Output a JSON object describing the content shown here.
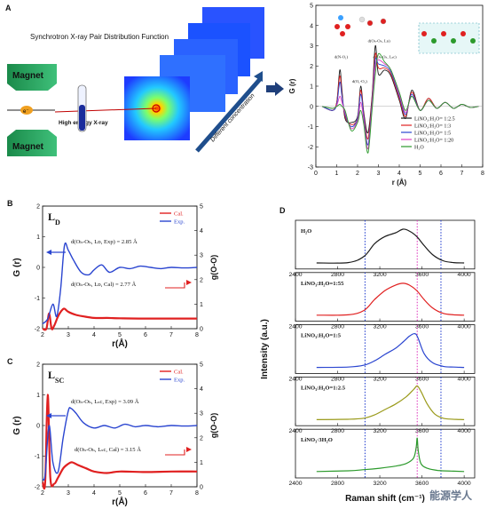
{
  "figure": {
    "watermark": "能源学人",
    "panel_A": {
      "label": "A",
      "schematic_title": "Synchrotron X-ray Pair Distribution Function",
      "magnet_label": "Magnet",
      "electron_label": "e⁻",
      "xray_label": "High energy X-ray",
      "arrow_label": "Different concentration"
    },
    "panel_B": {
      "label": "B",
      "Lsub": "D"
    },
    "panel_C": {
      "label": "C",
      "Lsub": "SC"
    },
    "panel_D": {
      "label": "D"
    }
  },
  "colors": {
    "black": "#1a1a1a",
    "red": "#e02020",
    "blue": "#2a45d0",
    "magenta": "#e040c0",
    "green": "#2c9a2c",
    "olive": "#9a9a1a",
    "darkred": "#c01010"
  },
  "chart_data": [
    {
      "id": "A",
      "type": "line",
      "xlabel": "r (Å)",
      "ylabel": "G (r)",
      "xlim": [
        0,
        8
      ],
      "ylim": [
        -3,
        5
      ],
      "xticks": [
        0,
        1,
        2,
        3,
        4,
        5,
        6,
        7,
        8
      ],
      "yticks": [
        -3,
        -2,
        -1,
        0,
        1,
        2,
        3,
        4,
        5
      ],
      "legend_position": "bottom-right",
      "annotations": [
        "d(N-O₁)",
        "d(O₁-O₁)",
        "d(Oₕ-Oₕ, Lᴅ)",
        "d(Oₕ-Oₕ, Lₛc)"
      ],
      "series": [
        {
          "name": "LiNO₃:H₂O= 1:2.5",
          "color": "#1a1a1a",
          "x": [
            0.3,
            0.8,
            1.0,
            1.15,
            1.25,
            1.4,
            1.7,
            2.0,
            2.15,
            2.3,
            2.5,
            2.7,
            2.85,
            3.0,
            3.3,
            3.6,
            4.0,
            4.3,
            4.6,
            5.0,
            5.4,
            5.8,
            6.2,
            6.6,
            7.0,
            7.4,
            7.8
          ],
          "y": [
            0,
            -0.2,
            0.2,
            1.8,
            0.8,
            -0.6,
            -0.8,
            -0.5,
            1.0,
            -0.3,
            -1.3,
            0.6,
            3.0,
            1.6,
            1.8,
            1.5,
            0.3,
            -0.6,
            0.8,
            -0.2,
            0.4,
            -0.1,
            0.2,
            -0.1,
            0.1,
            -0.05,
            0
          ]
        },
        {
          "name": "LiNO₃:H₂O= 1:3",
          "color": "#e02020",
          "x": [
            0.3,
            0.8,
            1.0,
            1.15,
            1.25,
            1.4,
            1.7,
            2.0,
            2.15,
            2.3,
            2.5,
            2.7,
            2.85,
            3.0,
            3.3,
            3.6,
            4.0,
            4.3,
            4.6,
            5.0,
            5.4,
            5.8,
            6.2,
            6.6,
            7.0,
            7.4,
            7.8
          ],
          "y": [
            0,
            -0.2,
            0.2,
            1.5,
            0.6,
            -0.5,
            -0.9,
            -0.6,
            0.8,
            -0.4,
            -1.6,
            0.5,
            2.6,
            1.9,
            1.9,
            1.6,
            0.4,
            -0.5,
            0.7,
            -0.2,
            0.4,
            -0.1,
            0.2,
            -0.1,
            0.1,
            -0.05,
            0
          ]
        },
        {
          "name": "LiNO₃:H₂O= 1:5",
          "color": "#2a45d0",
          "x": [
            0.3,
            0.8,
            1.0,
            1.15,
            1.25,
            1.4,
            1.7,
            2.0,
            2.15,
            2.3,
            2.5,
            2.7,
            2.85,
            3.0,
            3.3,
            3.6,
            4.0,
            4.3,
            4.6,
            5.0,
            5.4,
            5.8,
            6.2,
            6.6,
            7.0,
            7.4,
            7.8
          ],
          "y": [
            0,
            -0.2,
            0.1,
            1.2,
            0.5,
            -0.4,
            -1.0,
            -0.6,
            0.6,
            -0.5,
            -1.9,
            0.3,
            2.3,
            2.1,
            2.0,
            1.7,
            0.5,
            -0.4,
            0.6,
            -0.2,
            0.3,
            -0.1,
            0.2,
            -0.1,
            0.1,
            -0.05,
            0
          ]
        },
        {
          "name": "LiNO₃:H₂O= 1:20",
          "color": "#e040c0",
          "x": [
            0.3,
            0.8,
            1.0,
            1.15,
            1.25,
            1.4,
            1.7,
            2.0,
            2.15,
            2.3,
            2.5,
            2.7,
            2.85,
            3.0,
            3.3,
            3.6,
            4.0,
            4.3,
            4.6,
            5.0,
            5.4,
            5.8,
            6.2,
            6.6,
            7.0,
            7.4,
            7.8
          ],
          "y": [
            0,
            -0.1,
            0.05,
            0.5,
            0.2,
            -0.3,
            -1.1,
            -0.7,
            0.2,
            -0.7,
            -2.1,
            0.1,
            2.0,
            2.3,
            2.1,
            1.8,
            0.6,
            -0.3,
            0.5,
            -0.2,
            0.3,
            -0.1,
            0.2,
            -0.1,
            0.1,
            -0.05,
            0
          ]
        },
        {
          "name": "H₂O",
          "color": "#2c9a2c",
          "x": [
            0.3,
            0.8,
            1.0,
            1.15,
            1.25,
            1.4,
            1.7,
            2.0,
            2.15,
            2.3,
            2.5,
            2.7,
            2.85,
            3.0,
            3.3,
            3.6,
            4.0,
            4.3,
            4.6,
            5.0,
            5.4,
            5.8,
            6.2,
            6.6,
            7.0,
            7.4,
            7.8
          ],
          "y": [
            0,
            -0.1,
            0,
            0.1,
            0,
            -0.2,
            -1.2,
            -0.8,
            -0.2,
            -0.9,
            -2.3,
            -0.1,
            1.6,
            2.6,
            2.2,
            1.8,
            0.7,
            -0.2,
            0.5,
            -0.2,
            0.3,
            -0.1,
            0.2,
            -0.1,
            0.1,
            -0.05,
            0
          ]
        }
      ]
    },
    {
      "id": "B",
      "type": "line",
      "xlabel": "r(Å)",
      "ylabel": "G (r)",
      "y2label": "g(O-O)",
      "xlim": [
        2,
        8
      ],
      "ylim": [
        -2,
        2
      ],
      "y2lim": [
        0,
        5
      ],
      "xticks": [
        2,
        3,
        4,
        5,
        6,
        7,
        8
      ],
      "yticks": [
        -2,
        -1,
        0,
        1,
        2
      ],
      "y2ticks": [
        0,
        1,
        2,
        3,
        4,
        5
      ],
      "legend_position": "top-right",
      "annotations": [
        "d(Oₕ-Oₕ, Lᴅ, Exp) = 2.85 Å",
        "d(Oₕ-Oₕ, Lᴅ, Cal) = 2.77 Å"
      ],
      "series": [
        {
          "name": "Cal.",
          "color": "#e02020",
          "axis": "left",
          "x": [
            2.0,
            2.15,
            2.25,
            2.35,
            2.45,
            2.6,
            2.75,
            2.85,
            3.0,
            3.3,
            3.6,
            4.0,
            4.5,
            5.0,
            6.0,
            7.0,
            8.0
          ],
          "y": [
            -2.0,
            -2.0,
            -1.5,
            -2.0,
            -1.9,
            -1.6,
            -1.4,
            -1.35,
            -1.45,
            -1.55,
            -1.6,
            -1.65,
            -1.65,
            -1.66,
            -1.67,
            -1.67,
            -1.67
          ]
        },
        {
          "name": "Exp.",
          "color": "#2a45d0",
          "axis": "right",
          "x": [
            2.0,
            2.2,
            2.4,
            2.55,
            2.7,
            2.85,
            3.0,
            3.2,
            3.5,
            3.8,
            4.0,
            4.3,
            4.6,
            5.0,
            5.4,
            5.8,
            6.2,
            6.6,
            7.0,
            7.5,
            8.0
          ],
          "y": [
            0.2,
            0.4,
            1.0,
            0.5,
            1.6,
            3.4,
            3.2,
            2.8,
            2.3,
            2.2,
            2.4,
            2.6,
            2.3,
            2.5,
            2.45,
            2.55,
            2.5,
            2.45,
            2.5,
            2.48,
            2.5
          ]
        }
      ]
    },
    {
      "id": "C",
      "type": "line",
      "xlabel": "r(Å)",
      "ylabel": "G (r)",
      "y2label": "g(O-O)",
      "xlim": [
        2,
        8
      ],
      "ylim": [
        -2,
        2
      ],
      "y2lim": [
        0,
        5
      ],
      "xticks": [
        2,
        3,
        4,
        5,
        6,
        7,
        8
      ],
      "yticks": [
        -2,
        -1,
        0,
        1,
        2
      ],
      "y2ticks": [
        0,
        1,
        2,
        3,
        4,
        5
      ],
      "legend_position": "top-right",
      "annotations": [
        "d(Oₕ-Oₕ, Lₛc, Exp) = 3.09 Å",
        "d(Oₕ-Oₕ, Lₛc, Cal) = 3.15 Å"
      ],
      "series": [
        {
          "name": "Cal.",
          "color": "#e02020",
          "axis": "left",
          "x": [
            2.0,
            2.1,
            2.2,
            2.3,
            2.45,
            2.6,
            2.8,
            3.0,
            3.15,
            3.4,
            3.7,
            4.0,
            4.5,
            5.0,
            6.0,
            7.0,
            8.0
          ],
          "y": [
            -1.85,
            -1.85,
            1.0,
            -1.7,
            -1.9,
            -1.7,
            -1.4,
            -1.25,
            -1.2,
            -1.3,
            -1.4,
            -1.5,
            -1.55,
            -1.5,
            -1.52,
            -1.5,
            -1.5
          ]
        },
        {
          "name": "Exp.",
          "color": "#2a45d0",
          "axis": "right",
          "x": [
            2.0,
            2.1,
            2.25,
            2.4,
            2.6,
            2.8,
            3.0,
            3.1,
            3.3,
            3.6,
            4.0,
            4.4,
            4.8,
            5.2,
            5.6,
            6.0,
            6.5,
            7.0,
            7.5,
            8.0
          ],
          "y": [
            0.3,
            0.5,
            2.5,
            1.0,
            0.6,
            2.0,
            3.1,
            3.2,
            3.0,
            2.6,
            2.4,
            2.5,
            2.4,
            2.55,
            2.45,
            2.5,
            2.45,
            2.5,
            2.48,
            2.5
          ]
        }
      ]
    },
    {
      "id": "D",
      "type": "line",
      "xlabel": "Raman shift (cm⁻¹)",
      "ylabel": "Intensity (a.u.)",
      "xlim": [
        2400,
        4100
      ],
      "xticks": [
        2400,
        2800,
        3200,
        3600,
        4000
      ],
      "reference_lines": [
        {
          "x": 3060,
          "color": "#2a45d0",
          "style": "dotted"
        },
        {
          "x": 3555,
          "color": "#e040c0",
          "style": "dotted"
        },
        {
          "x": 3780,
          "color": "#2a45d0",
          "style": "dotted"
        }
      ],
      "series": [
        {
          "name": "H₂O",
          "color": "#1a1a1a",
          "x": [
            2600,
            2900,
            3050,
            3150,
            3250,
            3350,
            3420,
            3480,
            3550,
            3620,
            3700,
            3800,
            3900,
            4000
          ],
          "y": [
            0.02,
            0.03,
            0.2,
            0.55,
            0.75,
            0.85,
            0.95,
            0.9,
            0.75,
            0.5,
            0.25,
            0.08,
            0.03,
            0.02
          ]
        },
        {
          "name": "LiNO₃:H₂O=1:55",
          "color": "#e02020",
          "x": [
            2600,
            2900,
            3050,
            3150,
            3250,
            3350,
            3420,
            3480,
            3550,
            3620,
            3700,
            3800,
            3900,
            4000
          ],
          "y": [
            0.02,
            0.03,
            0.15,
            0.45,
            0.7,
            0.85,
            0.9,
            0.85,
            0.7,
            0.45,
            0.22,
            0.07,
            0.03,
            0.02
          ]
        },
        {
          "name": "LiNO₃:H₂O=1:5",
          "color": "#2a45d0",
          "x": [
            2600,
            2900,
            3050,
            3150,
            3250,
            3350,
            3420,
            3480,
            3530,
            3560,
            3620,
            3700,
            3800,
            3900,
            4000
          ],
          "y": [
            0.02,
            0.03,
            0.08,
            0.2,
            0.38,
            0.55,
            0.72,
            0.88,
            0.95,
            0.85,
            0.4,
            0.15,
            0.05,
            0.03,
            0.02
          ]
        },
        {
          "name": "LiNO₃:H₂O=1:2.5",
          "color": "#9a9a1a",
          "x": [
            2600,
            2900,
            3050,
            3150,
            3250,
            3350,
            3450,
            3520,
            3555,
            3590,
            3650,
            3720,
            3800,
            3900,
            4000
          ],
          "y": [
            0.02,
            0.03,
            0.06,
            0.15,
            0.3,
            0.45,
            0.65,
            0.85,
            0.95,
            0.8,
            0.45,
            0.18,
            0.06,
            0.03,
            0.02
          ]
        },
        {
          "name": "LiNO₃·3H₂O",
          "color": "#2c9a2c",
          "x": [
            2600,
            2900,
            3050,
            3200,
            3350,
            3450,
            3520,
            3545,
            3555,
            3565,
            3590,
            3650,
            3750,
            3900,
            4000
          ],
          "y": [
            0.03,
            0.05,
            0.08,
            0.12,
            0.18,
            0.25,
            0.4,
            0.7,
            0.95,
            0.6,
            0.25,
            0.12,
            0.06,
            0.04,
            0.03
          ]
        }
      ]
    }
  ]
}
